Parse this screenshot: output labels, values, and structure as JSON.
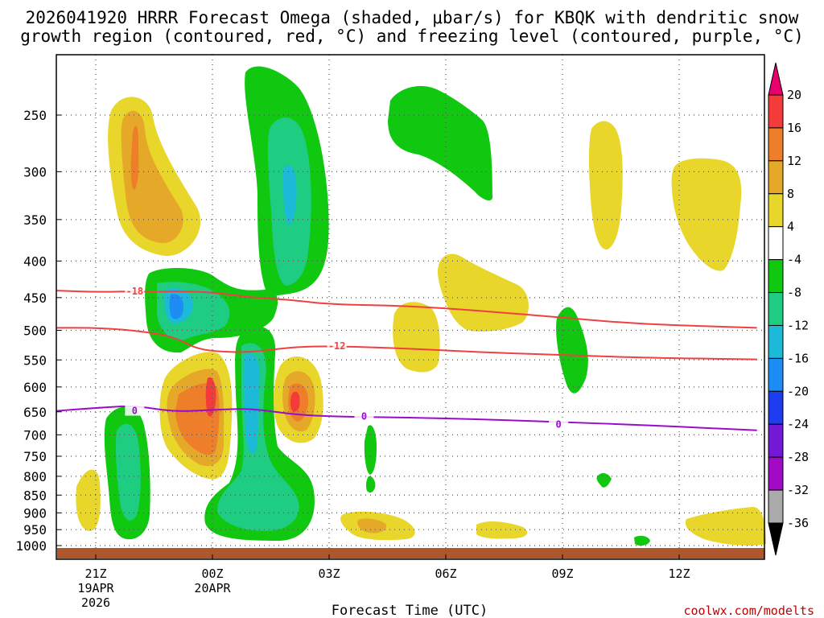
{
  "chart_data": {
    "type": "time-height contour",
    "title_line1": "2026041920 HRRR Forecast Omega (shaded, μbar/s) for KBQK with dendritic snow",
    "title_line2": "growth region (contoured, red, °C) and freezing level (contoured, purple, °C)",
    "xlabel": "Forecast Time (UTC)",
    "ylabel": "",
    "credit": "coolwx.com/modelts",
    "x_ticks": [
      {
        "hour": 0,
        "label": "21Z",
        "sub1": "19APR",
        "sub2": "2026"
      },
      {
        "hour": 3,
        "label": "00Z",
        "sub1": "20APR",
        "sub2": ""
      },
      {
        "hour": 6,
        "label": "03Z",
        "sub1": "",
        "sub2": ""
      },
      {
        "hour": 9,
        "label": "06Z",
        "sub1": "",
        "sub2": ""
      },
      {
        "hour": 12,
        "label": "09Z",
        "sub1": "",
        "sub2": ""
      },
      {
        "hour": 15,
        "label": "12Z",
        "sub1": "",
        "sub2": ""
      }
    ],
    "xlim_hours": [
      -1,
      17
    ],
    "y_ticks_hpa": [
      250,
      300,
      350,
      400,
      450,
      500,
      550,
      600,
      650,
      700,
      750,
      800,
      850,
      900,
      950,
      1000
    ],
    "ylim_hpa": [
      200,
      1015
    ],
    "colorbar": {
      "labels": [
        "20",
        "16",
        "12",
        "8",
        "4",
        "-4",
        "-8",
        "-12",
        "-16",
        "-20",
        "-24",
        "-28",
        "-32",
        "-36"
      ],
      "colors": [
        "#e8006e",
        "#f53a3a",
        "#ee7e2a",
        "#e6a828",
        "#e8d62a",
        "#ffffff",
        "#0fc80f",
        "#1ecc82",
        "#1cbad8",
        "#1e8cf5",
        "#1e3cf0",
        "#7418d8",
        "#a20ac8",
        "#aaaaaa",
        "#000000"
      ]
    },
    "contours": [
      {
        "name": "-18",
        "label": "-18",
        "color": "#f04040",
        "points": [
          [
            -1,
            440
          ],
          [
            0,
            442
          ],
          [
            1,
            441
          ],
          [
            1.5,
            442
          ],
          [
            2,
            441
          ],
          [
            3,
            442
          ],
          [
            4,
            450
          ],
          [
            5,
            453
          ],
          [
            6,
            460
          ],
          [
            8,
            462
          ],
          [
            10,
            470
          ],
          [
            12,
            480
          ],
          [
            14,
            490
          ],
          [
            16,
            494
          ],
          [
            17,
            496
          ]
        ]
      },
      {
        "name": "-12",
        "label": "-12",
        "color": "#f04040",
        "points": [
          [
            -1,
            496
          ],
          [
            0,
            496
          ],
          [
            1,
            500
          ],
          [
            2,
            510
          ],
          [
            2.5,
            528
          ],
          [
            3,
            535
          ],
          [
            4,
            537
          ],
          [
            5,
            528
          ],
          [
            6,
            526
          ],
          [
            8,
            530
          ],
          [
            10,
            537
          ],
          [
            12,
            541
          ],
          [
            14,
            546
          ],
          [
            17,
            549
          ]
        ]
      },
      {
        "name": "0",
        "label": "0",
        "color": "#9a0ccc",
        "points": [
          [
            -1,
            648
          ],
          [
            0,
            642
          ],
          [
            1,
            637
          ],
          [
            2,
            650
          ],
          [
            3,
            646
          ],
          [
            4,
            643
          ],
          [
            5,
            655
          ],
          [
            6,
            660
          ],
          [
            8,
            662
          ],
          [
            10,
            666
          ],
          [
            12,
            672
          ],
          [
            14,
            678
          ],
          [
            16,
            686
          ],
          [
            17,
            690
          ]
        ]
      }
    ],
    "contour_label_positions": [
      {
        "text": "-18",
        "hour": 1.0,
        "hpa": 441
      },
      {
        "text": "-12",
        "hour": 6.2,
        "hpa": 526
      },
      {
        "text": "0",
        "hour": 1.0,
        "hpa": 648
      },
      {
        "text": "0",
        "hour": 6.9,
        "hpa": 660
      },
      {
        "text": "0",
        "hour": 11.9,
        "hpa": 677
      }
    ],
    "ground_hpa": 1005
  }
}
